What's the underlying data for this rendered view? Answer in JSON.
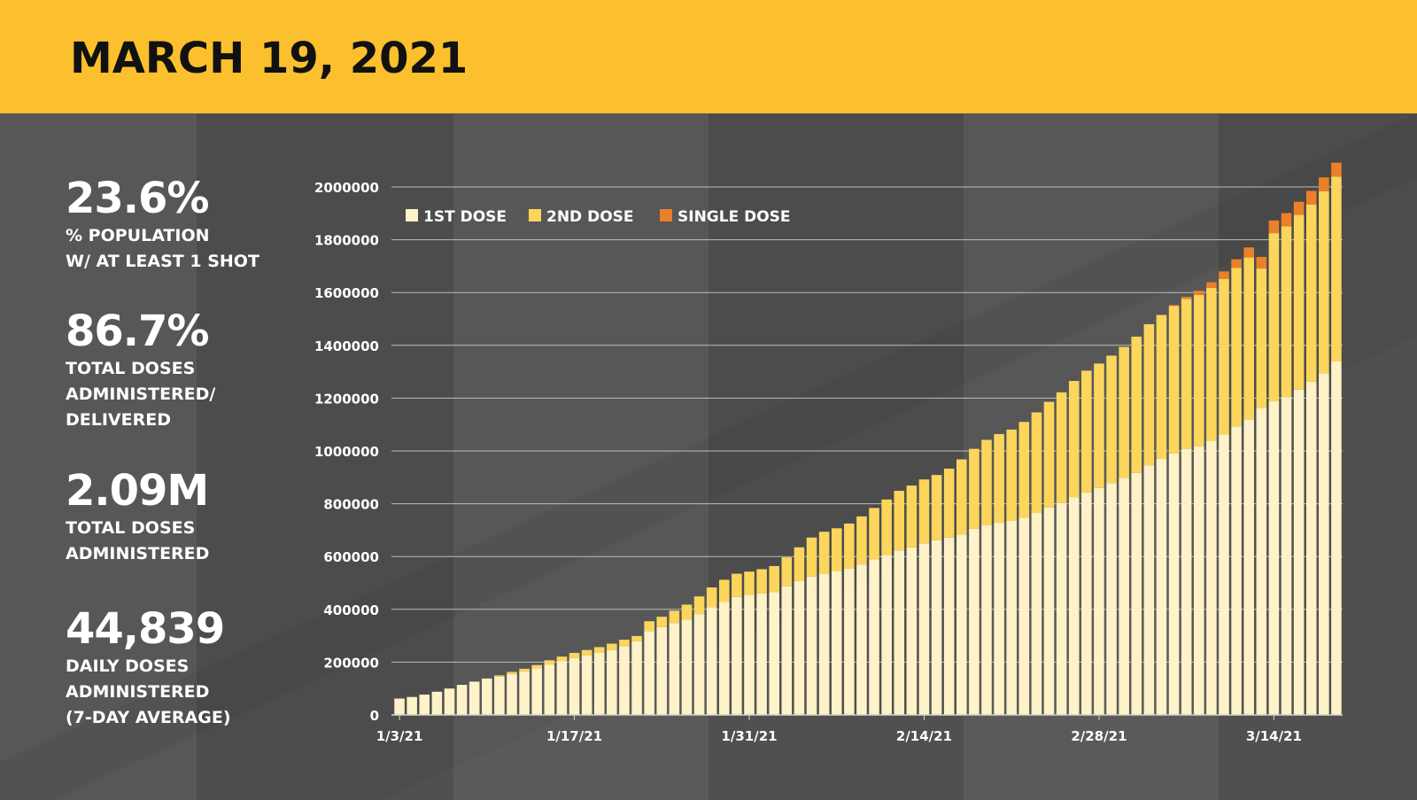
{
  "header": {
    "title": "MARCH 19, 2021"
  },
  "colors": {
    "header_bg": "#fcc02e",
    "background": "#4f4f4f",
    "first_dose": "#fff2c8",
    "second_dose": "#fcd55d",
    "single_dose": "#ec7f2a"
  },
  "stats": [
    {
      "value": "23.6%",
      "label": "% POPULATION\nW/ AT LEAST 1 SHOT"
    },
    {
      "value": "86.7%",
      "label": "TOTAL DOSES\nADMINISTERED/\nDELIVERED"
    },
    {
      "value": "2.09M",
      "label": "TOTAL DOSES\nADMINISTERED"
    },
    {
      "value": "44,839",
      "label": "DAILY DOSES\nADMINISTERED\n(7-DAY AVERAGE)"
    }
  ],
  "chart_data": {
    "type": "bar",
    "stacked": true,
    "title": "",
    "xlabel": "",
    "ylabel": "",
    "ylim": [
      0,
      2000000
    ],
    "y_ticks": [
      "0",
      "200000",
      "400000",
      "600000",
      "800000",
      "1000000",
      "1200000",
      "1400000",
      "1600000",
      "1800000",
      "2000000"
    ],
    "x_tick_labels": [
      {
        "index": 0,
        "label": "1/3/21"
      },
      {
        "index": 14,
        "label": "1/17/21"
      },
      {
        "index": 28,
        "label": "1/31/21"
      },
      {
        "index": 42,
        "label": "2/14/21"
      },
      {
        "index": 56,
        "label": "2/28/21"
      },
      {
        "index": 70,
        "label": "3/14/21"
      }
    ],
    "legend": {
      "position": "top-left",
      "entries": [
        "1ST DOSE",
        "2ND DOSE",
        "SINGLE DOSE"
      ]
    },
    "categories": [
      "1/3/21",
      "1/4/21",
      "1/5/21",
      "1/6/21",
      "1/7/21",
      "1/8/21",
      "1/9/21",
      "1/10/21",
      "1/11/21",
      "1/12/21",
      "1/13/21",
      "1/14/21",
      "1/15/21",
      "1/16/21",
      "1/17/21",
      "1/18/21",
      "1/19/21",
      "1/20/21",
      "1/21/21",
      "1/22/21",
      "1/23/21",
      "1/24/21",
      "1/25/21",
      "1/26/21",
      "1/27/21",
      "1/28/21",
      "1/29/21",
      "1/30/21",
      "1/31/21",
      "2/1/21",
      "2/2/21",
      "2/3/21",
      "2/4/21",
      "2/5/21",
      "2/6/21",
      "2/7/21",
      "2/8/21",
      "2/9/21",
      "2/10/21",
      "2/11/21",
      "2/12/21",
      "2/13/21",
      "2/14/21",
      "2/15/21",
      "2/16/21",
      "2/17/21",
      "2/18/21",
      "2/19/21",
      "2/20/21",
      "2/21/21",
      "2/22/21",
      "2/23/21",
      "2/24/21",
      "2/25/21",
      "2/26/21",
      "2/27/21",
      "2/28/21",
      "3/1/21",
      "3/2/21",
      "3/3/21",
      "3/4/21",
      "3/5/21",
      "3/6/21",
      "3/7/21",
      "3/8/21",
      "3/9/21",
      "3/10/21",
      "3/11/21",
      "3/12/21",
      "3/13/21",
      "3/14/21",
      "3/15/21",
      "3/16/21",
      "3/17/21",
      "3/18/21",
      "3/19/21"
    ],
    "series": [
      {
        "name": "1ST DOSE",
        "values": [
          62000,
          68000,
          77000,
          88000,
          100000,
          114000,
          126000,
          138000,
          145000,
          155000,
          165000,
          176000,
          191000,
          203000,
          215000,
          225000,
          235000,
          246000,
          261000,
          279000,
          318000,
          333000,
          348000,
          362000,
          382000,
          408000,
          428000,
          447000,
          455000,
          460000,
          465000,
          487000,
          507000,
          524000,
          535000,
          545000,
          555000,
          570000,
          590000,
          606000,
          623000,
          635000,
          650000,
          662000,
          672000,
          684000,
          705000,
          718000,
          728000,
          735000,
          747000,
          765000,
          786000,
          803000,
          825000,
          843000,
          860000,
          878000,
          898000,
          917000,
          945000,
          970000,
          991000,
          1008000,
          1018000,
          1039000,
          1063000,
          1093000,
          1120000,
          1163000,
          1188000,
          1203000,
          1232000,
          1262000,
          1294000,
          1339000
        ]
      },
      {
        "name": "2ND DOSE",
        "values": [
          0,
          0,
          0,
          0,
          0,
          0,
          0,
          0,
          5000,
          8000,
          10000,
          13000,
          16000,
          18000,
          20000,
          21000,
          22000,
          24000,
          24000,
          20000,
          37000,
          39000,
          47000,
          56000,
          67000,
          75000,
          84000,
          88000,
          88000,
          92000,
          99000,
          110000,
          128000,
          148000,
          159000,
          162000,
          170000,
          182000,
          194000,
          210000,
          226000,
          234000,
          242000,
          247000,
          261000,
          284000,
          303000,
          324000,
          336000,
          346000,
          363000,
          381000,
          400000,
          419000,
          440000,
          461000,
          471000,
          483000,
          496000,
          516000,
          535000,
          545000,
          558000,
          568000,
          573000,
          579000,
          589000,
          600000,
          613000,
          528000,
          637000,
          648000,
          662000,
          672000,
          690000,
          700000
        ]
      },
      {
        "name": "SINGLE DOSE",
        "values": [
          0,
          0,
          0,
          0,
          0,
          0,
          0,
          0,
          0,
          0,
          0,
          0,
          0,
          0,
          0,
          0,
          0,
          0,
          0,
          0,
          0,
          0,
          0,
          0,
          0,
          0,
          0,
          0,
          0,
          0,
          0,
          0,
          0,
          0,
          0,
          0,
          0,
          0,
          0,
          0,
          0,
          0,
          0,
          0,
          0,
          0,
          0,
          0,
          0,
          0,
          0,
          0,
          0,
          0,
          0,
          0,
          0,
          0,
          0,
          0,
          0,
          0,
          4000,
          8000,
          16000,
          21000,
          28000,
          33000,
          38000,
          44000,
          48000,
          50000,
          50000,
          51000,
          52000,
          53000
        ]
      }
    ]
  }
}
